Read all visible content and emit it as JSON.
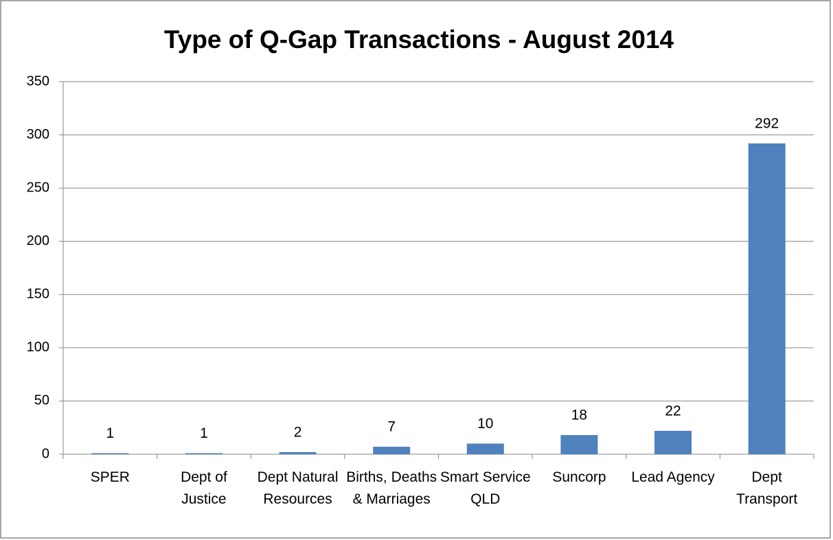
{
  "chart_data": {
    "type": "bar",
    "title": "Type of Q-Gap Transactions - August 2014",
    "categories": [
      "SPER",
      "Dept of Justice",
      "Dept Natural Resources",
      "Births, Deaths & Marriages",
      "Smart Service QLD",
      "Suncorp",
      "Lead Agency",
      "Dept Transport"
    ],
    "values": [
      1,
      1,
      2,
      7,
      10,
      18,
      22,
      292
    ],
    "color": "#4f81bd",
    "ylim": [
      0,
      350
    ],
    "yticks": [
      0,
      50,
      100,
      150,
      200,
      250,
      300,
      350
    ],
    "grid": true
  }
}
